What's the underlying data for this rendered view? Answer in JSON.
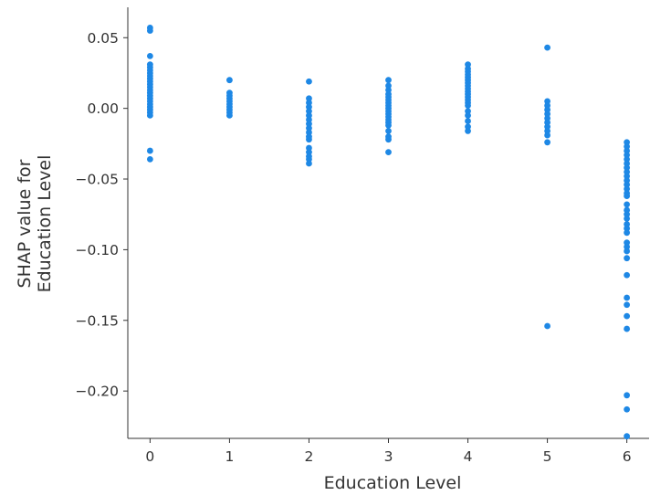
{
  "chart_data": {
    "type": "scatter",
    "xlabel": "Education Level",
    "ylabel_lines": [
      "SHAP value for",
      "Education Level"
    ],
    "xlim": [
      -0.28,
      6.28
    ],
    "ylim": [
      -0.2335,
      0.0715
    ],
    "x_ticks": [
      0,
      1,
      2,
      3,
      4,
      5,
      6
    ],
    "y_ticks": [
      0.05,
      0.0,
      -0.05,
      -0.1,
      -0.15,
      -0.2
    ],
    "y_tick_labels": [
      "0.05",
      "0.00",
      "−0.05",
      "−0.10",
      "−0.15",
      "−0.20"
    ],
    "x_tick_labels": [
      "0",
      "1",
      "2",
      "3",
      "4",
      "5",
      "6"
    ],
    "grid": false,
    "point_color": "#1e88e5",
    "series": [
      {
        "x": 0,
        "y": [
          0.057,
          0.055,
          0.037,
          0.031,
          0.029,
          0.027,
          0.025,
          0.023,
          0.021,
          0.019,
          0.017,
          0.015,
          0.013,
          0.011,
          0.009,
          0.007,
          0.005,
          0.003,
          0.001,
          -0.001,
          -0.003,
          -0.005,
          -0.03,
          -0.036
        ]
      },
      {
        "x": 1,
        "y": [
          0.02,
          0.011,
          0.009,
          0.007,
          0.005,
          0.003,
          0.001,
          -0.001,
          -0.003,
          -0.005
        ]
      },
      {
        "x": 2,
        "y": [
          0.019,
          0.007,
          0.004,
          0.001,
          -0.002,
          -0.005,
          -0.008,
          -0.011,
          -0.014,
          -0.017,
          -0.02,
          -0.022,
          -0.028,
          -0.031,
          -0.034,
          -0.036,
          -0.039
        ]
      },
      {
        "x": 3,
        "y": [
          0.02,
          0.016,
          0.013,
          0.01,
          0.008,
          0.006,
          0.004,
          0.002,
          0.0,
          -0.002,
          -0.004,
          -0.006,
          -0.008,
          -0.01,
          -0.012,
          -0.016,
          -0.02,
          -0.022,
          -0.031
        ]
      },
      {
        "x": 4,
        "y": [
          0.031,
          0.028,
          0.026,
          0.024,
          0.022,
          0.02,
          0.018,
          0.016,
          0.014,
          0.012,
          0.01,
          0.008,
          0.006,
          0.004,
          0.002,
          -0.002,
          -0.005,
          -0.009,
          -0.013,
          -0.016
        ]
      },
      {
        "x": 5,
        "y": [
          0.043,
          0.005,
          0.002,
          -0.001,
          -0.004,
          -0.007,
          -0.01,
          -0.013,
          -0.016,
          -0.019,
          -0.024,
          -0.154
        ]
      },
      {
        "x": 6,
        "y": [
          -0.024,
          -0.027,
          -0.03,
          -0.033,
          -0.036,
          -0.039,
          -0.042,
          -0.045,
          -0.048,
          -0.051,
          -0.054,
          -0.057,
          -0.06,
          -0.062,
          -0.068,
          -0.072,
          -0.075,
          -0.078,
          -0.082,
          -0.085,
          -0.088,
          -0.095,
          -0.098,
          -0.101,
          -0.106,
          -0.118,
          -0.134,
          -0.139,
          -0.147,
          -0.156,
          -0.203,
          -0.213,
          -0.232
        ]
      }
    ]
  }
}
